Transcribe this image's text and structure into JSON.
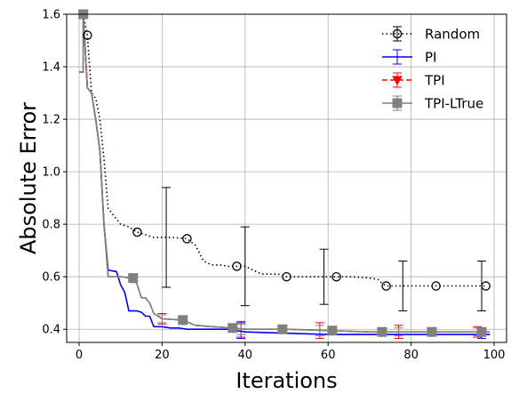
{
  "chart_data": {
    "type": "line",
    "xlabel": "Iterations",
    "ylabel": "Absolute Error",
    "xlim": [
      -3,
      103
    ],
    "ylim": [
      0.35,
      1.6
    ],
    "xticks": [
      0,
      20,
      40,
      60,
      80,
      100
    ],
    "yticks": [
      0.4,
      0.6,
      0.8,
      1.0,
      1.2,
      1.4,
      1.6
    ],
    "xtick_labels": [
      "0",
      "20",
      "40",
      "60",
      "80",
      "100"
    ],
    "ytick_labels": [
      "0.4",
      "0.6",
      "0.8",
      "1.0",
      "1.2",
      "1.4",
      "1.6"
    ],
    "grid": true,
    "legend_position": "top-right",
    "series": [
      {
        "name": "Random",
        "color": "#000000",
        "line_style": "dotted",
        "marker": "open-circle",
        "x": [
          1,
          2,
          3,
          4,
          5,
          6,
          7,
          8,
          10,
          12,
          14,
          16,
          18,
          22,
          26,
          28,
          30,
          32,
          34,
          36,
          38,
          40,
          42,
          44,
          46,
          48,
          50,
          52,
          56,
          60,
          62,
          66,
          70,
          72,
          73,
          74,
          80,
          86,
          90,
          94,
          98
        ],
        "y": [
          1.6,
          1.52,
          1.3,
          1.28,
          1.2,
          1.05,
          0.86,
          0.84,
          0.8,
          0.79,
          0.77,
          0.76,
          0.75,
          0.75,
          0.745,
          0.72,
          0.66,
          0.645,
          0.645,
          0.64,
          0.64,
          0.64,
          0.625,
          0.61,
          0.61,
          0.61,
          0.6,
          0.6,
          0.6,
          0.6,
          0.6,
          0.6,
          0.595,
          0.59,
          0.575,
          0.565,
          0.565,
          0.565,
          0.565,
          0.565,
          0.565
        ],
        "marker_x": [
          2,
          14,
          26,
          38,
          50,
          62,
          74,
          86,
          98
        ],
        "marker_y": [
          1.52,
          0.77,
          0.745,
          0.64,
          0.6,
          0.6,
          0.565,
          0.565,
          0.565
        ],
        "errorbars": [
          {
            "x": 21,
            "y": 0.75,
            "low": 0.56,
            "high": 0.94
          },
          {
            "x": 40,
            "y": 0.64,
            "low": 0.49,
            "high": 0.79
          },
          {
            "x": 59,
            "y": 0.6,
            "low": 0.495,
            "high": 0.705
          },
          {
            "x": 78,
            "y": 0.565,
            "low": 0.47,
            "high": 0.66
          },
          {
            "x": 97,
            "y": 0.565,
            "low": 0.47,
            "high": 0.66
          }
        ]
      },
      {
        "name": "PI",
        "color": "#0000ff",
        "line_style": "solid",
        "marker": "none",
        "x": [
          0,
          1,
          1,
          2,
          3,
          4,
          5,
          6,
          7,
          9,
          10,
          11,
          12,
          14,
          15,
          16,
          17,
          18,
          20,
          22,
          24,
          26,
          30,
          36,
          40,
          50,
          60,
          70,
          80,
          99
        ],
        "y": [
          1.38,
          1.38,
          1.6,
          1.32,
          1.3,
          1.2,
          1.08,
          0.8,
          0.625,
          0.62,
          0.57,
          0.54,
          0.47,
          0.47,
          0.465,
          0.45,
          0.45,
          0.41,
          0.41,
          0.405,
          0.405,
          0.4,
          0.4,
          0.4,
          0.39,
          0.385,
          0.38,
          0.38,
          0.38,
          0.38
        ],
        "marker_x": [],
        "marker_y": [],
        "errorbars": [
          {
            "x": 39,
            "y": 0.395,
            "low": 0.365,
            "high": 0.425
          },
          {
            "x": 97,
            "y": 0.38,
            "low": 0.365,
            "high": 0.395
          }
        ]
      },
      {
        "name": "TPI",
        "color": "#ff0000",
        "line_style": "dashed",
        "marker": "triangle-down",
        "x": [
          0,
          1,
          1,
          2,
          3,
          4,
          5,
          6,
          7,
          10,
          13,
          14,
          15,
          16,
          17,
          18,
          20,
          25,
          28,
          32,
          37,
          40,
          50,
          60,
          70,
          80,
          99
        ],
        "y": [
          1.38,
          1.38,
          1.6,
          1.32,
          1.3,
          1.2,
          1.08,
          0.8,
          0.6,
          0.6,
          0.595,
          0.57,
          0.52,
          0.52,
          0.5,
          0.46,
          0.44,
          0.435,
          0.415,
          0.41,
          0.405,
          0.4,
          0.4,
          0.395,
          0.39,
          0.39,
          0.39
        ],
        "marker_x": [
          1,
          13,
          25,
          37,
          49,
          61,
          73,
          85,
          97
        ],
        "marker_y": [
          1.6,
          0.595,
          0.435,
          0.405,
          0.4,
          0.395,
          0.39,
          0.39,
          0.39
        ],
        "errorbars": [
          {
            "x": 20,
            "y": 0.44,
            "low": 0.42,
            "high": 0.46
          },
          {
            "x": 39,
            "y": 0.4,
            "low": 0.37,
            "high": 0.43
          },
          {
            "x": 58,
            "y": 0.395,
            "low": 0.365,
            "high": 0.425
          },
          {
            "x": 77,
            "y": 0.39,
            "low": 0.365,
            "high": 0.415
          },
          {
            "x": 96,
            "y": 0.39,
            "low": 0.37,
            "high": 0.41
          }
        ]
      },
      {
        "name": "TPI-LTrue",
        "color": "#808080",
        "line_style": "solid",
        "marker": "square",
        "x": [
          0,
          1,
          1,
          2,
          3,
          4,
          5,
          6,
          7,
          10,
          13,
          14,
          15,
          16,
          17,
          18,
          20,
          25,
          28,
          32,
          37,
          40,
          50,
          60,
          70,
          80,
          99
        ],
        "y": [
          1.38,
          1.38,
          1.6,
          1.32,
          1.3,
          1.2,
          1.08,
          0.8,
          0.6,
          0.6,
          0.595,
          0.57,
          0.52,
          0.52,
          0.5,
          0.46,
          0.44,
          0.435,
          0.415,
          0.41,
          0.405,
          0.4,
          0.4,
          0.395,
          0.39,
          0.39,
          0.39
        ],
        "marker_x": [
          1,
          13,
          25,
          37,
          49,
          61,
          73,
          85,
          97
        ],
        "marker_y": [
          1.6,
          0.595,
          0.435,
          0.405,
          0.4,
          0.395,
          0.39,
          0.39,
          0.39
        ],
        "errorbars": [
          {
            "x": 20,
            "y": 0.44,
            "low": 0.425,
            "high": 0.455
          },
          {
            "x": 39,
            "y": 0.4,
            "low": 0.38,
            "high": 0.42
          },
          {
            "x": 58,
            "y": 0.395,
            "low": 0.375,
            "high": 0.415
          },
          {
            "x": 77,
            "y": 0.39,
            "low": 0.375,
            "high": 0.405
          },
          {
            "x": 96,
            "y": 0.39,
            "low": 0.375,
            "high": 0.405
          }
        ]
      }
    ]
  }
}
